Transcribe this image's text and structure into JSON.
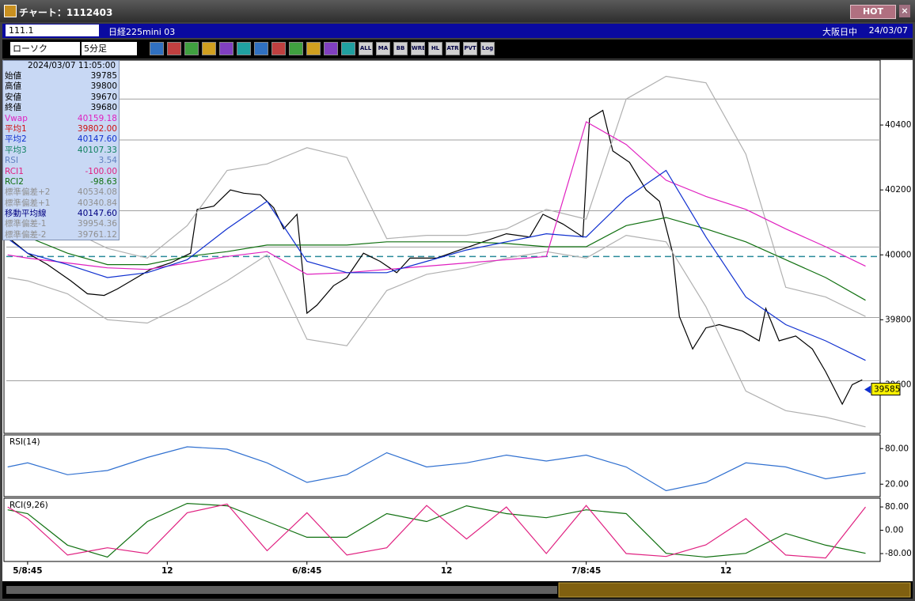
{
  "window": {
    "title": "チャート：1112403",
    "hot_button": "HOT"
  },
  "toolbar": {
    "code": "111.1",
    "instrument": "日経225mini 03",
    "session": "大阪日中",
    "date": "24/03/07",
    "chart_type": "ローソク",
    "interval": "5分足",
    "buttons": [
      "ALL",
      "MA",
      "BB",
      "WRE",
      "HL",
      "ATR",
      "PVT",
      "Log"
    ]
  },
  "info": {
    "datetime": "2024/03/07  11:05:00",
    "rows": [
      {
        "label": "始値",
        "value": "39785",
        "color": "#000000"
      },
      {
        "label": "高値",
        "value": "39800",
        "color": "#000000"
      },
      {
        "label": "安値",
        "value": "39670",
        "color": "#000000"
      },
      {
        "label": "終値",
        "value": "39680",
        "color": "#000000"
      },
      {
        "label": "Vwap",
        "value": "40159.18",
        "color": "#e020c0"
      },
      {
        "label": "平均1",
        "value": "39802.00",
        "color": "#d01010"
      },
      {
        "label": "平均2",
        "value": "40147.60",
        "color": "#1030d0"
      },
      {
        "label": "平均3",
        "value": "40107.33",
        "color": "#108060"
      },
      {
        "label": "RSI",
        "value": "3.54",
        "color": "#6080c0"
      },
      {
        "label": "RCI1",
        "value": "-100.00",
        "color": "#e02080"
      },
      {
        "label": "RCI2",
        "value": "-98.63",
        "color": "#107010"
      },
      {
        "label": "標準偏差+2",
        "value": "40534.08",
        "color": "#909090"
      },
      {
        "label": "標準偏差+1",
        "value": "40340.84",
        "color": "#909090"
      },
      {
        "label": "移動平均線",
        "value": "40147.60",
        "color": "#000080"
      },
      {
        "label": "標準偏差-1",
        "value": "39954.36",
        "color": "#909090"
      },
      {
        "label": "標準偏差-2",
        "value": "39761.12",
        "color": "#909090"
      }
    ]
  },
  "chart_data": [
    {
      "type": "line",
      "xlim": [
        -6.4,
        256.4
      ],
      "ylim": [
        39450,
        40600
      ],
      "yticks": [
        39600,
        39800,
        40000,
        40200,
        40400
      ],
      "hlines": [
        40480,
        40354,
        40136,
        40024,
        39807,
        39612
      ],
      "hline_color": "#a0a0a0",
      "reference_line": {
        "value": 39995,
        "color": "#2a8a9a"
      },
      "last_price": 39585,
      "series": [
        {
          "color": "#000000",
          "x": [
            -6,
            0,
            6,
            13,
            18,
            23,
            27,
            32,
            37,
            43,
            49,
            51,
            56,
            61,
            65,
            70,
            74,
            77,
            81,
            84,
            87,
            92,
            96,
            101,
            106,
            111,
            115,
            123,
            130,
            137,
            144,
            151,
            155,
            161,
            167,
            169,
            173,
            176,
            181,
            186,
            190,
            194,
            196,
            200,
            204,
            208,
            215,
            220,
            222,
            226,
            231,
            236,
            240,
            245,
            248,
            251
          ],
          "values": [
            40055,
            40005,
            39970,
            39920,
            39880,
            39875,
            39895,
            39925,
            39955,
            39975,
            40005,
            40140,
            40150,
            40200,
            40190,
            40185,
            40145,
            40080,
            40125,
            39820,
            39845,
            39905,
            39930,
            40005,
            39980,
            39945,
            39990,
            39990,
            40015,
            40040,
            40065,
            40055,
            40125,
            40095,
            40055,
            40420,
            40445,
            40320,
            40285,
            40200,
            40165,
            40005,
            39810,
            39710,
            39775,
            39785,
            39765,
            39735,
            39835,
            39735,
            39750,
            39710,
            39640,
            39540,
            39600,
            39615
          ]
        },
        {
          "color": "#b0b0b0",
          "x": [
            -6,
            0,
            12,
            24,
            36,
            48,
            60,
            72,
            84,
            96,
            108,
            120,
            132,
            144,
            156,
            168,
            180,
            192,
            204,
            216,
            228,
            240,
            252
          ],
          "values": [
            40120,
            40100,
            40080,
            40020,
            39990,
            40090,
            40260,
            40280,
            40330,
            40300,
            40050,
            40060,
            40060,
            40080,
            40140,
            40110,
            40480,
            40550,
            40530,
            40310,
            39900,
            39870,
            39810
          ]
        },
        {
          "color": "#b0b0b0",
          "x": [
            -6,
            0,
            12,
            24,
            36,
            48,
            60,
            72,
            84,
            96,
            108,
            120,
            132,
            144,
            156,
            168,
            180,
            192,
            204,
            216,
            228,
            240,
            252
          ],
          "values": [
            39930,
            39920,
            39880,
            39800,
            39790,
            39850,
            39920,
            40000,
            39740,
            39720,
            39890,
            39940,
            39960,
            39990,
            40010,
            39990,
            40060,
            40040,
            39840,
            39580,
            39520,
            39500,
            39470
          ]
        },
        {
          "color": "#107010",
          "x": [
            -6,
            0,
            12,
            24,
            36,
            48,
            60,
            72,
            84,
            96,
            108,
            120,
            132,
            144,
            156,
            168,
            180,
            192,
            204,
            216,
            228,
            240,
            252
          ],
          "values": [
            40060,
            40055,
            40005,
            39970,
            39970,
            39995,
            40010,
            40030,
            40030,
            40030,
            40040,
            40040,
            40040,
            40035,
            40025,
            40025,
            40090,
            40115,
            40080,
            40040,
            39985,
            39930,
            39860
          ]
        },
        {
          "color": "#e020c0",
          "x": [
            -6,
            0,
            12,
            24,
            36,
            48,
            60,
            72,
            84,
            96,
            108,
            120,
            132,
            144,
            156,
            168,
            180,
            192,
            204,
            216,
            228,
            240,
            252
          ],
          "values": [
            40000,
            39990,
            39975,
            39960,
            39955,
            39975,
            39995,
            40010,
            39940,
            39945,
            39955,
            39965,
            39975,
            39985,
            39995,
            40410,
            40340,
            40230,
            40180,
            40140,
            40080,
            40025,
            39965
          ]
        },
        {
          "color": "#1030d0",
          "x": [
            -6,
            0,
            12,
            24,
            36,
            48,
            60,
            72,
            84,
            96,
            108,
            120,
            132,
            144,
            156,
            168,
            180,
            192,
            204,
            216,
            228,
            240,
            252
          ],
          "values": [
            40050,
            40005,
            39970,
            39930,
            39945,
            39985,
            40080,
            40165,
            39980,
            39945,
            39945,
            39980,
            40015,
            40040,
            40065,
            40055,
            40175,
            40260,
            40055,
            39870,
            39785,
            39735,
            39675
          ]
        }
      ]
    },
    {
      "type": "line",
      "title": "RSI(14)",
      "xlim": [
        -6.4,
        256.4
      ],
      "ylim": [
        -1,
        103
      ],
      "yticks": [
        {
          "value": 80,
          "label": "80.00"
        },
        {
          "value": 20,
          "label": "20.00"
        }
      ],
      "series": [
        {
          "color": "#3070d0",
          "x": [
            -6,
            0,
            12,
            24,
            36,
            48,
            60,
            72,
            84,
            96,
            108,
            120,
            132,
            144,
            156,
            168,
            180,
            192,
            204,
            216,
            228,
            240,
            252
          ],
          "values": [
            49,
            56,
            36,
            43,
            65,
            83,
            79,
            56,
            23,
            36,
            73,
            49,
            56,
            69,
            59,
            69,
            49,
            9,
            23,
            56,
            49,
            29,
            39
          ]
        }
      ]
    },
    {
      "type": "line",
      "title": "RCI(9,26)",
      "xlim": [
        -6.4,
        256.4
      ],
      "ylim": [
        -107,
        110
      ],
      "yticks": [
        {
          "value": 80,
          "label": "80.00"
        },
        {
          "value": 0,
          "label": "0.00"
        },
        {
          "value": -80,
          "label": "-80.00"
        }
      ],
      "xticks": [
        {
          "value": 0,
          "label": "5/8:45"
        },
        {
          "value": 42,
          "label": "12"
        },
        {
          "value": 84,
          "label": "6/8:45"
        },
        {
          "value": 126,
          "label": "12"
        },
        {
          "value": 168,
          "label": "7/8:45"
        },
        {
          "value": 210,
          "label": "12"
        }
      ],
      "series": [
        {
          "color": "#107010",
          "x": [
            -6,
            0,
            12,
            24,
            36,
            48,
            60,
            72,
            84,
            96,
            108,
            120,
            132,
            144,
            156,
            168,
            180,
            192,
            204,
            216,
            228,
            240,
            252
          ],
          "values": [
            70,
            57,
            -51,
            -92,
            30,
            92,
            84,
            30,
            -24,
            -24,
            57,
            30,
            84,
            57,
            43,
            70,
            57,
            -79,
            -92,
            -79,
            -11,
            -51,
            -79
          ]
        },
        {
          "color": "#e02080",
          "x": [
            -6,
            0,
            12,
            24,
            36,
            48,
            60,
            72,
            84,
            96,
            108,
            120,
            132,
            144,
            156,
            168,
            180,
            192,
            204,
            216,
            228,
            240,
            252
          ],
          "values": [
            80,
            40,
            -85,
            -60,
            -80,
            60,
            90,
            -70,
            60,
            -85,
            -60,
            85,
            -30,
            80,
            -80,
            85,
            -80,
            -90,
            -50,
            40,
            -85,
            -95,
            80
          ]
        }
      ]
    }
  ]
}
